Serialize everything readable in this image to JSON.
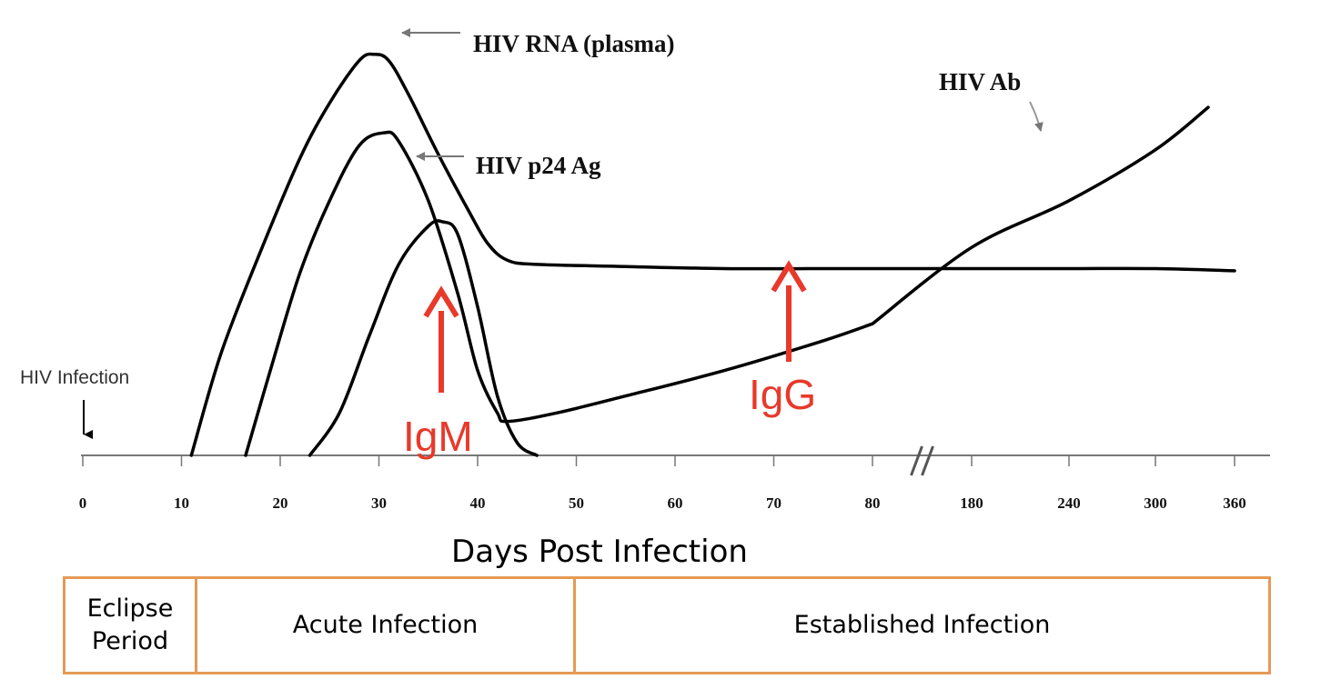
{
  "chart_data": {
    "type": "line",
    "title": "",
    "xlabel": "Days Post Infection",
    "ylabel": "",
    "x_ticks": [
      0,
      10,
      20,
      30,
      40,
      50,
      60,
      70,
      80,
      180,
      240,
      300,
      360
    ],
    "x_break_between": [
      80,
      180
    ],
    "grid": false,
    "legend": "none",
    "series": [
      {
        "name": "HIV RNA (plasma)",
        "x": [
          11,
          14,
          18,
          22,
          25,
          28,
          29.5,
          31,
          33,
          36,
          39,
          41,
          43,
          46,
          55,
          65,
          75,
          80,
          180,
          240,
          300,
          360
        ],
        "y": [
          0,
          0.24,
          0.48,
          0.7,
          0.83,
          0.93,
          0.945,
          0.93,
          0.85,
          0.71,
          0.58,
          0.5,
          0.46,
          0.45,
          0.445,
          0.44,
          0.44,
          0.44,
          0.44,
          0.44,
          0.44,
          0.435
        ]
      },
      {
        "name": "HIV p24 Ag",
        "x": [
          16.5,
          19,
          22,
          25,
          28,
          30.5,
          32,
          35,
          38,
          40,
          42,
          43,
          48,
          55,
          65,
          75,
          80
        ],
        "y": [
          0,
          0.2,
          0.43,
          0.6,
          0.73,
          0.76,
          0.74,
          0.6,
          0.38,
          0.2,
          0.1,
          0.08,
          0.1,
          0.14,
          0.2,
          0.27,
          0.31
        ]
      },
      {
        "name": "IgM",
        "x": [
          23,
          26,
          29,
          32,
          35,
          36.5,
          38,
          40,
          42,
          44,
          46
        ],
        "y": [
          0,
          0.1,
          0.28,
          0.45,
          0.54,
          0.55,
          0.52,
          0.35,
          0.14,
          0.03,
          0
        ]
      },
      {
        "name": "HIV Ab",
        "x": [
          80,
          180,
          240,
          300,
          340
        ],
        "y": [
          0.31,
          0.49,
          0.6,
          0.72,
          0.82
        ]
      }
    ],
    "annotations": [
      {
        "text": "HIV RNA (plasma)",
        "points_to_series": "HIV RNA (plasma)"
      },
      {
        "text": "HIV p24 Ag",
        "points_to_series": "HIV p24 Ag"
      },
      {
        "text": "HIV Ab",
        "points_to_series": "HIV Ab"
      },
      {
        "text": "HIV Infection",
        "at_x": 0
      },
      {
        "text": "IgM",
        "color": "#e8392b",
        "at_x": 36
      },
      {
        "text": "IgG",
        "color": "#e8392b",
        "at_x": 71
      }
    ]
  },
  "labels": {
    "rna": "HIV RNA (plasma)",
    "p24": "HIV p24 Ag",
    "ab": "HIV Ab",
    "infection": "HIV Infection",
    "igm": "IgM",
    "igg": "IgG",
    "xlabel": "Days Post Infection"
  },
  "phases": {
    "eclipse_line1": "Eclipse",
    "eclipse_line2": "Period",
    "acute": "Acute Infection",
    "established": "Established Infection"
  },
  "colors": {
    "curve": "#000000",
    "axis": "#777777",
    "annotation_arrow": "#e8392b",
    "phase_border": "#e59a55"
  }
}
